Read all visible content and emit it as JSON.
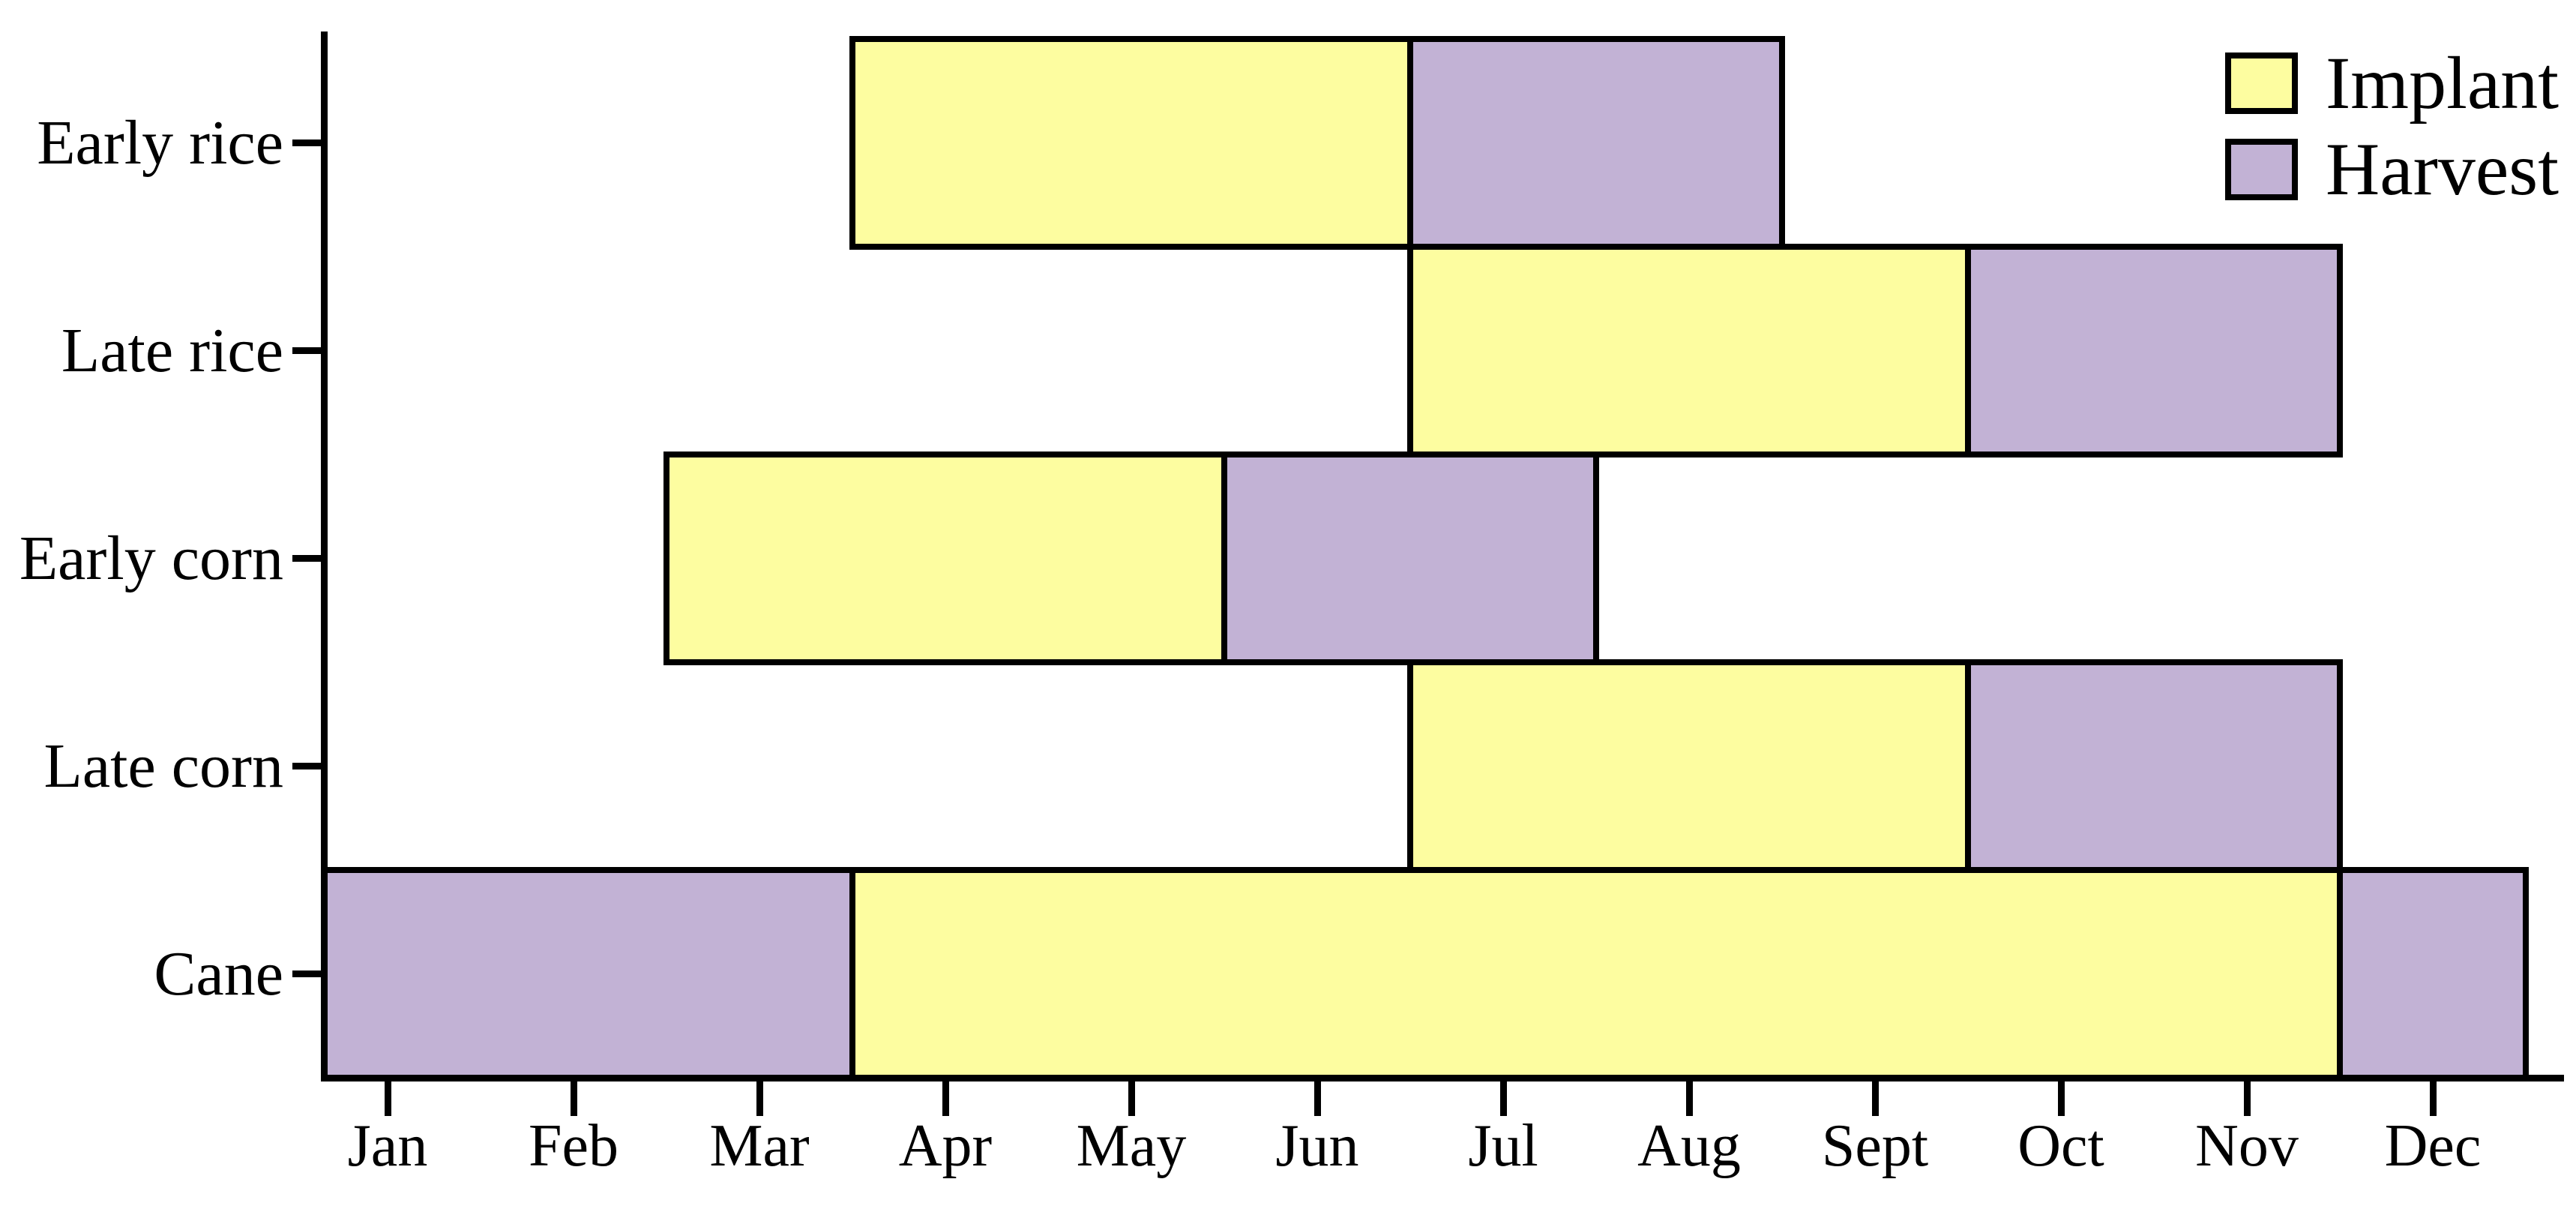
{
  "chart_data": {
    "type": "gantt",
    "orientation": "horizontal",
    "title": "",
    "x_axis": {
      "unit": "month",
      "tick_labels": [
        "Jan",
        "Feb",
        "Mar",
        "Apr",
        "May",
        "Jun",
        "Jul",
        "Aug",
        "Sept",
        "Oct",
        "Nov",
        "Dec"
      ],
      "range_months": [
        0,
        12
      ],
      "grid": false
    },
    "y_axis": {
      "categories": [
        "Early rice",
        "Late rice",
        "Early corn",
        "Late corn",
        "Cane"
      ]
    },
    "legend": {
      "position": "upper-right",
      "entries": [
        {
          "label": "Implant",
          "color": "#FDFDA0"
        },
        {
          "label": "Harvest",
          "color": "#C2B2D5"
        }
      ]
    },
    "colors": {
      "implant": "#FDFDA0",
      "harvest": "#C2B2D5",
      "axis": "#000000",
      "background": "#FFFFFF"
    },
    "rows": [
      {
        "label": "Early rice",
        "segments": [
          {
            "phase": "Implant",
            "from_month": 3,
            "to_month": 6,
            "months": "Apr–Jun"
          },
          {
            "phase": "Harvest",
            "from_month": 6,
            "to_month": 8,
            "months": "Jul–Aug"
          }
        ]
      },
      {
        "label": "Late rice",
        "segments": [
          {
            "phase": "Implant",
            "from_month": 6,
            "to_month": 9,
            "months": "Jul–Sept"
          },
          {
            "phase": "Harvest",
            "from_month": 9,
            "to_month": 11,
            "months": "Oct–Nov"
          }
        ]
      },
      {
        "label": "Early corn",
        "segments": [
          {
            "phase": "Implant",
            "from_month": 2,
            "to_month": 5,
            "months": "Mar–May"
          },
          {
            "phase": "Harvest",
            "from_month": 5,
            "to_month": 7,
            "months": "Jun–Jul"
          }
        ]
      },
      {
        "label": "Late corn",
        "segments": [
          {
            "phase": "Implant",
            "from_month": 6,
            "to_month": 9,
            "months": "Jul–Sept"
          },
          {
            "phase": "Harvest",
            "from_month": 9,
            "to_month": 11,
            "months": "Oct–Nov"
          }
        ]
      },
      {
        "label": "Cane",
        "segments": [
          {
            "phase": "Harvest",
            "from_month": 0,
            "to_month": 3,
            "months": "Jan–Mar"
          },
          {
            "phase": "Implant",
            "from_month": 3,
            "to_month": 11,
            "months": "Apr–Nov"
          },
          {
            "phase": "Harvest",
            "from_month": 11,
            "to_month": 12,
            "months": "Dec"
          }
        ]
      }
    ]
  }
}
